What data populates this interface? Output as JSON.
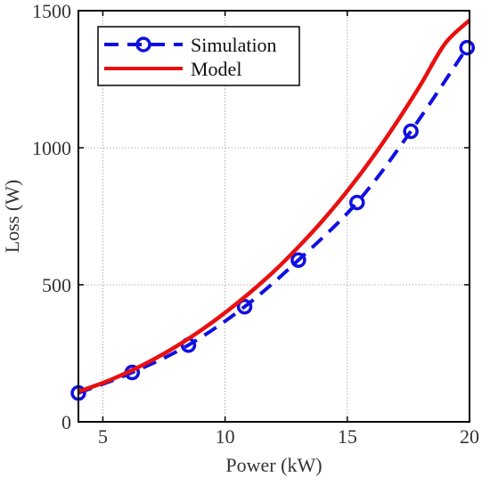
{
  "chart_data": {
    "type": "line",
    "xlabel": "Power (kW)",
    "ylabel": "Loss (W)",
    "xlim": [
      4,
      20
    ],
    "ylim": [
      0,
      1500
    ],
    "xticks": [
      5,
      10,
      15,
      20
    ],
    "yticks": [
      0,
      500,
      1000,
      1500
    ],
    "grid": true,
    "legend_position": "top-left",
    "series": [
      {
        "name": "Simulation",
        "style": "dashed-with-circle-markers",
        "color": "#1010e0",
        "x": [
          4.0,
          6.2,
          8.5,
          10.8,
          13.0,
          15.4,
          17.6,
          19.9
        ],
        "y": [
          105,
          180,
          280,
          420,
          590,
          800,
          1060,
          1365
        ]
      },
      {
        "name": "Model",
        "style": "solid",
        "color": "#e81010",
        "x": [
          4.0,
          5.0,
          6.0,
          7.0,
          8.0,
          9.0,
          10.0,
          11.0,
          12.0,
          13.0,
          14.0,
          15.0,
          16.0,
          17.0,
          18.0,
          19.0,
          20.0
        ],
        "y": [
          110,
          142,
          180,
          224,
          275,
          333,
          398,
          470,
          549,
          638,
          735,
          842,
          960,
          1090,
          1230,
          1380,
          1465
        ]
      }
    ]
  }
}
